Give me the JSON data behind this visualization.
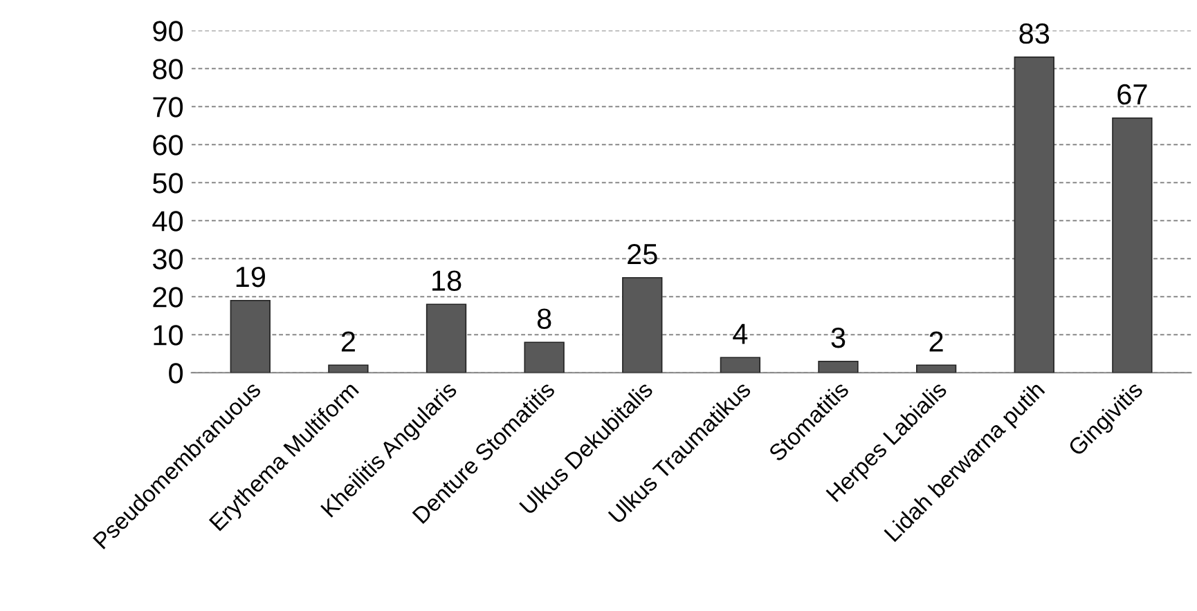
{
  "chart_data": {
    "type": "bar",
    "categories": [
      "Pseudomembranuous",
      "Erythema Multiform",
      "Kheilitis Angularis",
      "Denture Stomatitis",
      "Ulkus Dekubitalis",
      "Ulkus Traumatikus",
      "Stomatitis",
      "Herpes Labialis",
      "Lidah berwarna putih",
      "Gingivitis"
    ],
    "values": [
      19,
      2,
      18,
      8,
      25,
      4,
      3,
      2,
      83,
      67
    ],
    "color": "#595959",
    "ylim": [
      0,
      90
    ],
    "yticks": [
      0,
      10,
      20,
      30,
      40,
      50,
      60,
      70,
      80,
      90
    ],
    "grid": "y",
    "data_labels": true
  }
}
